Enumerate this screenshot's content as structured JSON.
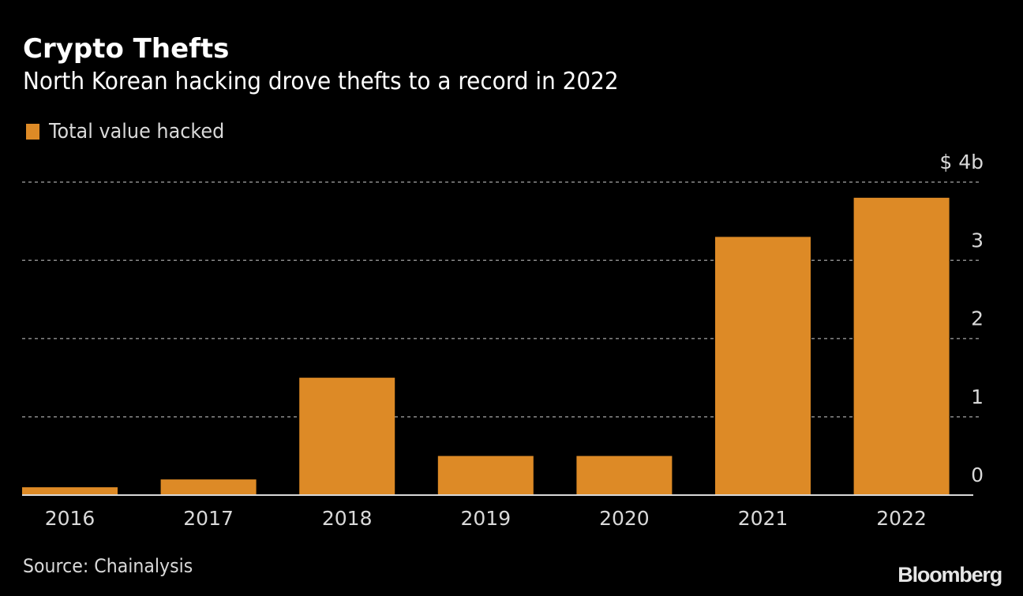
{
  "header": {
    "title": "Crypto Thefts",
    "subtitle": "North Korean hacking drove thefts to a record in 2022"
  },
  "legend": {
    "items": [
      {
        "label": "Total value hacked",
        "color": "#dd8a26"
      }
    ]
  },
  "footer": {
    "source": "Source: Chainalysis",
    "brand": "Bloomberg"
  },
  "colors": {
    "background": "#000000",
    "bar": "#dd8a26",
    "grid": "#8a8a8a",
    "baseline": "#d9d9d9",
    "text": "#d9d9d9"
  },
  "chart_data": {
    "type": "bar",
    "title": "Crypto Thefts",
    "subtitle": "North Korean hacking drove thefts to a record in 2022",
    "categories": [
      "2016",
      "2017",
      "2018",
      "2019",
      "2020",
      "2021",
      "2022"
    ],
    "series": [
      {
        "name": "Total value hacked",
        "values": [
          0.1,
          0.2,
          1.5,
          0.5,
          0.5,
          3.3,
          3.8
        ]
      }
    ],
    "xlabel": "",
    "ylabel": "",
    "ylim": [
      0,
      4
    ],
    "yticks": [
      0,
      1,
      2,
      3,
      4
    ],
    "ytick_labels": [
      "0",
      "1",
      "2",
      "3",
      "$ 4b"
    ],
    "grid": true,
    "y_axis_side": "right",
    "legend_position": "top-left",
    "unit": "$ billions"
  }
}
